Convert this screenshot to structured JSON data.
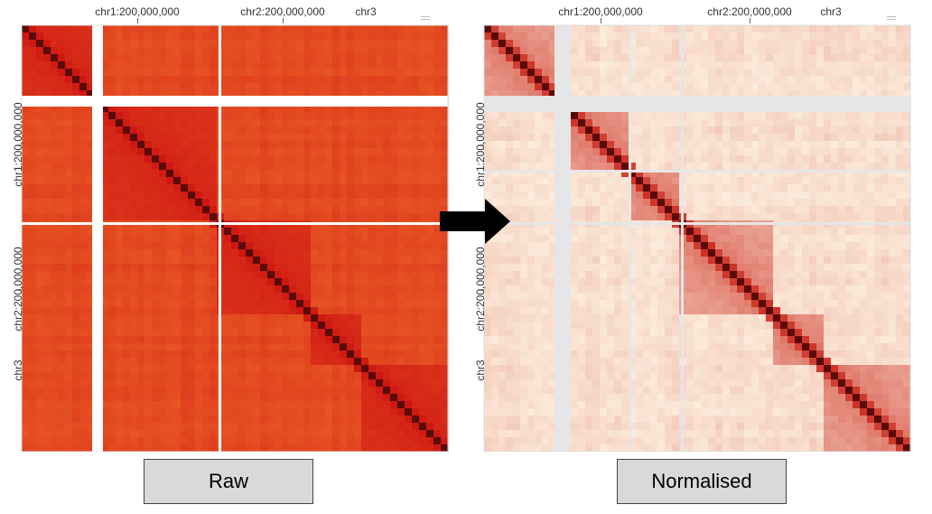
{
  "panels": [
    {
      "id": "raw",
      "top_labels": [
        "chr1:200,000,000",
        "chr2:200,000,000",
        "chr3"
      ],
      "left_labels": [
        "chr1:200,000,000",
        "chr2:200,000,000",
        "chr3"
      ],
      "style": "raw",
      "button_label": "Raw"
    },
    {
      "id": "norm",
      "top_labels": [
        "chr1:200,000,000",
        "chr2:200,000,000",
        "chr3"
      ],
      "left_labels": [
        "chr1:200,000,000",
        "chr2:200,000,000",
        "chr3"
      ],
      "style": "normalised",
      "button_label": "Normalised"
    }
  ],
  "colors": {
    "raw_low": "#f06a2a",
    "raw_high": "#cc1010",
    "norm_low": "#fdf1e0",
    "norm_high": "#c81a0e",
    "gap": "#e6e6e6",
    "arrow": "#000000"
  }
}
